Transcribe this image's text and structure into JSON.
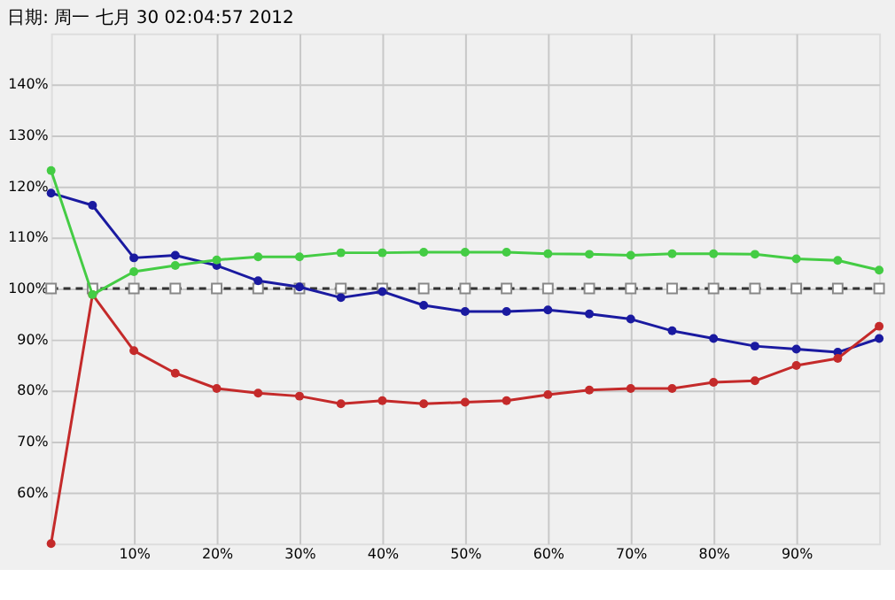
{
  "chart_data": {
    "type": "line",
    "title": "日期: 周一 七月 30 02:04:57 2012",
    "x": [
      0,
      5,
      10,
      15,
      20,
      25,
      30,
      35,
      40,
      45,
      50,
      55,
      60,
      65,
      70,
      75,
      80,
      85,
      90,
      95,
      100
    ],
    "xlim": [
      0,
      100
    ],
    "ylim": [
      50,
      150
    ],
    "xticks": [
      {
        "value": 10,
        "label": "10%"
      },
      {
        "value": 20,
        "label": "20%"
      },
      {
        "value": 30,
        "label": "30%"
      },
      {
        "value": 40,
        "label": "40%"
      },
      {
        "value": 50,
        "label": "50%"
      },
      {
        "value": 60,
        "label": "60%"
      },
      {
        "value": 70,
        "label": "70%"
      },
      {
        "value": 80,
        "label": "80%"
      },
      {
        "value": 90,
        "label": "90%"
      }
    ],
    "yticks": [
      {
        "value": 60,
        "label": "60%"
      },
      {
        "value": 70,
        "label": "70%"
      },
      {
        "value": 80,
        "label": "80%"
      },
      {
        "value": 90,
        "label": "90%"
      },
      {
        "value": 100,
        "label": "100%"
      },
      {
        "value": 110,
        "label": "110%"
      },
      {
        "value": 120,
        "label": "120%"
      },
      {
        "value": 130,
        "label": "130%"
      },
      {
        "value": 140,
        "label": "140%"
      }
    ],
    "grid": true,
    "series": [
      {
        "color": "#333333",
        "marker": "square",
        "line_style": "dashed",
        "values": [
          100,
          100,
          100,
          100,
          100,
          100,
          100,
          100,
          100,
          100,
          100,
          100,
          100,
          100,
          100,
          100,
          100,
          100,
          100,
          100,
          100
        ]
      },
      {
        "color": "#1a1aa0",
        "marker": "circle",
        "line_style": "solid",
        "values": [
          118.7,
          116.3,
          106,
          106.5,
          104.5,
          101.5,
          100.3,
          98.2,
          99.4,
          96.7,
          95.5,
          95.5,
          95.8,
          95,
          94,
          91.7,
          90.2,
          88.7,
          88.1,
          87.5,
          90.2
        ]
      },
      {
        "color": "#c42a2a",
        "marker": "circle",
        "line_style": "solid",
        "values": [
          50,
          98.8,
          87.8,
          83.4,
          80.4,
          79.5,
          78.9,
          77.4,
          78,
          77.4,
          77.7,
          78,
          79.2,
          80.1,
          80.4,
          80.4,
          81.6,
          81.9,
          84.9,
          86.3,
          92.6
        ]
      },
      {
        "color": "#44cc44",
        "marker": "circle",
        "line_style": "solid",
        "values": [
          123.1,
          98.8,
          103.3,
          104.5,
          105.6,
          106.2,
          106.2,
          107,
          107,
          107.1,
          107.1,
          107.1,
          106.8,
          106.7,
          106.5,
          106.8,
          106.8,
          106.7,
          105.8,
          105.5,
          103.6
        ]
      }
    ]
  }
}
